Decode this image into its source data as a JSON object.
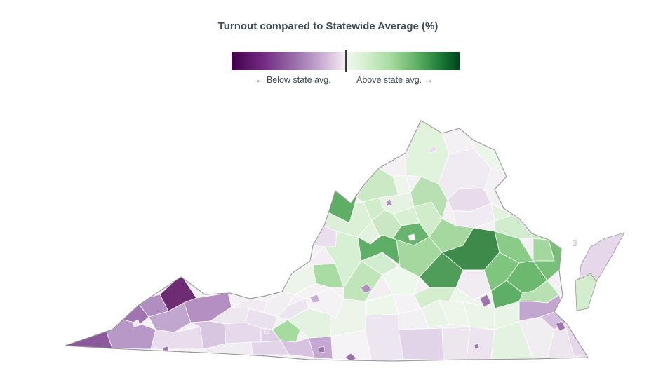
{
  "title": "Turnout compared to Statewide Average (%)",
  "legend": {
    "below_label": "← Below state avg.",
    "above_label": "Above state avg. →",
    "scale_colors": [
      "#40004b",
      "#762a83",
      "#9970ab",
      "#c2a5cf",
      "#e7d4e8",
      "#f7f7f7",
      "#d9f0d3",
      "#a6dba0",
      "#5aae61",
      "#1b7837",
      "#00441b"
    ]
  },
  "map": {
    "region": "Virginia",
    "geography": "counties and independent cities",
    "base_fill": "#f3f1f3",
    "outline_color": "#9a9a9a"
  }
}
